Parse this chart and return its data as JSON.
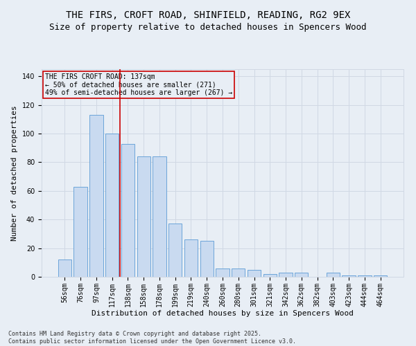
{
  "title_line1": "THE FIRS, CROFT ROAD, SHINFIELD, READING, RG2 9EX",
  "title_line2": "Size of property relative to detached houses in Spencers Wood",
  "xlabel": "Distribution of detached houses by size in Spencers Wood",
  "ylabel": "Number of detached properties",
  "categories": [
    "56sqm",
    "76sqm",
    "97sqm",
    "117sqm",
    "138sqm",
    "158sqm",
    "178sqm",
    "199sqm",
    "219sqm",
    "240sqm",
    "260sqm",
    "280sqm",
    "301sqm",
    "321sqm",
    "342sqm",
    "362sqm",
    "382sqm",
    "403sqm",
    "423sqm",
    "444sqm",
    "464sqm"
  ],
  "values": [
    12,
    63,
    113,
    100,
    93,
    84,
    84,
    37,
    26,
    25,
    6,
    6,
    5,
    2,
    3,
    3,
    0,
    3,
    1,
    1,
    1
  ],
  "bar_color": "#c9daf0",
  "bar_edge_color": "#5b9bd5",
  "grid_color": "#d0d8e4",
  "background_color": "#e8eef5",
  "annotation_box_text": "THE FIRS CROFT ROAD: 137sqm\n← 50% of detached houses are smaller (271)\n49% of semi-detached houses are larger (267) →",
  "annotation_box_color": "#cc0000",
  "vline_x_index": 3.5,
  "vline_color": "#cc0000",
  "ylim": [
    0,
    145
  ],
  "yticks": [
    0,
    20,
    40,
    60,
    80,
    100,
    120,
    140
  ],
  "footer_text": "Contains HM Land Registry data © Crown copyright and database right 2025.\nContains public sector information licensed under the Open Government Licence v3.0.",
  "title_fontsize": 10,
  "subtitle_fontsize": 9,
  "axis_label_fontsize": 8,
  "tick_fontsize": 7,
  "annotation_fontsize": 7,
  "footer_fontsize": 6
}
